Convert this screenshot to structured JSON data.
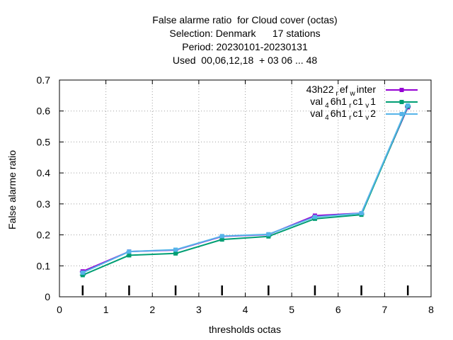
{
  "chart_data": {
    "type": "line",
    "title_lines": [
      "False alarme ratio  for Cloud cover (octas)",
      "Selection: Denmark      17 stations",
      "Period: 20230101-20230131",
      "Used  00,06,12,18  + 03 06 ... 48"
    ],
    "xlabel": "thresholds octas",
    "ylabel": "False alarme ratio",
    "xlim": [
      0,
      8
    ],
    "ylim": [
      0,
      0.7
    ],
    "xticks": [
      0,
      1,
      2,
      3,
      4,
      5,
      6,
      7,
      8
    ],
    "yticks": [
      0,
      0.1,
      0.2,
      0.3,
      0.4,
      0.5,
      0.6,
      0.7
    ],
    "grid": true,
    "legend_position": "top-right",
    "x": [
      0.5,
      1.5,
      2.5,
      3.5,
      4.5,
      5.5,
      6.5,
      7.5
    ],
    "threshold_marks": [
      0.5,
      1.5,
      2.5,
      3.5,
      4.5,
      5.5,
      6.5,
      7.5
    ],
    "series": [
      {
        "legend": {
          "base": "43h22",
          "parts": [
            {
              "sub": "r"
            },
            {
              "txt": "ef"
            },
            {
              "sub": "w"
            },
            {
              "txt": "inter"
            }
          ]
        },
        "color": "#9400d3",
        "values": [
          0.082,
          0.146,
          0.151,
          0.195,
          0.201,
          0.262,
          0.27,
          0.612
        ]
      },
      {
        "legend": {
          "base": "val",
          "parts": [
            {
              "sub": "4"
            },
            {
              "txt": "6h1"
            },
            {
              "sub": "r"
            },
            {
              "txt": "c1"
            },
            {
              "sub": "v"
            },
            {
              "txt": "1"
            }
          ]
        },
        "color": "#009e73",
        "values": [
          0.07,
          0.134,
          0.14,
          0.185,
          0.195,
          0.252,
          0.265,
          0.615
        ]
      },
      {
        "legend": {
          "base": "val",
          "parts": [
            {
              "sub": "4"
            },
            {
              "txt": "6h1"
            },
            {
              "sub": "r"
            },
            {
              "txt": "c1"
            },
            {
              "sub": "v"
            },
            {
              "txt": "2"
            }
          ]
        },
        "color": "#56b4e9",
        "values": [
          0.078,
          0.146,
          0.152,
          0.196,
          0.202,
          0.258,
          0.27,
          0.618
        ]
      }
    ]
  }
}
